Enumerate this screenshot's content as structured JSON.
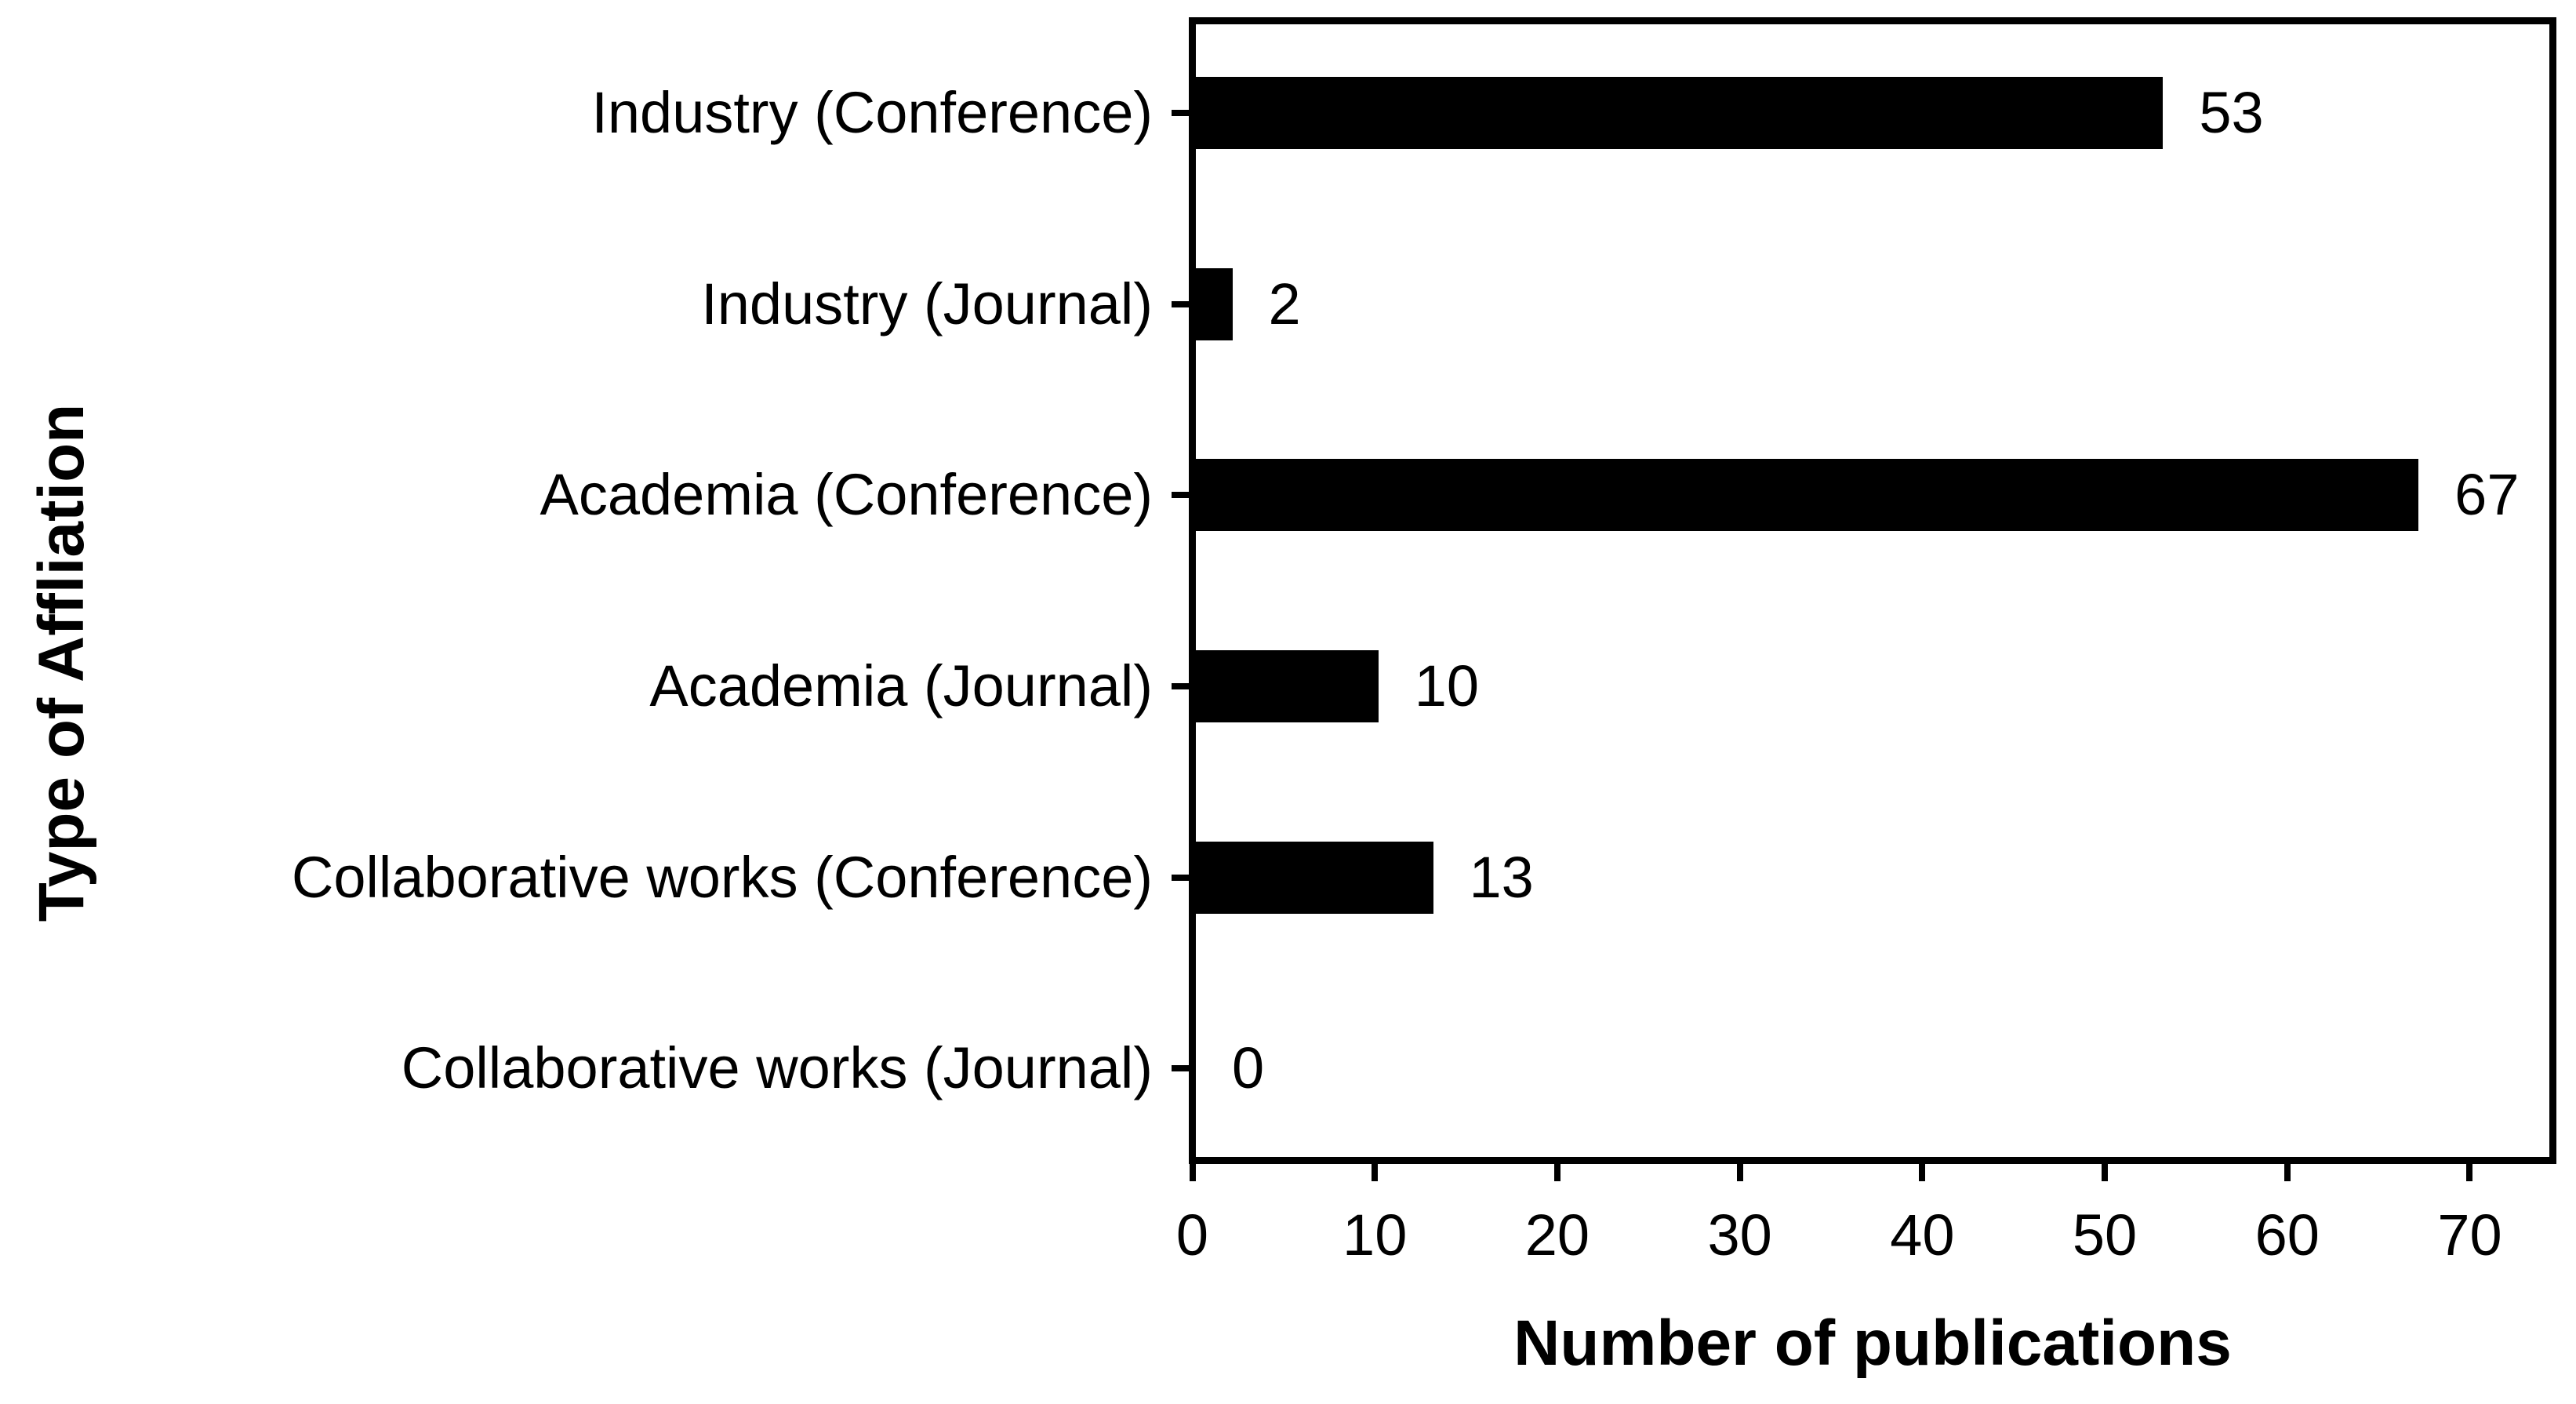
{
  "figure": {
    "background_color": "#ffffff",
    "bar_color": "#000000",
    "axis_color": "#000000",
    "text_color": "#000000"
  },
  "chart_data": {
    "type": "bar",
    "orientation": "horizontal",
    "title": "",
    "xlabel": "Number of publications",
    "ylabel": "Type of Affliation",
    "categories": [
      "Industry (Conference)",
      "Industry (Journal)",
      "Academia (Conference)",
      "Academia (Journal)",
      "Collaborative works (Conference)",
      "Collaborative works (Journal)"
    ],
    "values": [
      53,
      2,
      67,
      10,
      13,
      0
    ],
    "bar_value_labels": [
      "53",
      "2",
      "67",
      "10",
      "13",
      "0"
    ],
    "xticks": [
      0,
      10,
      20,
      30,
      40,
      50,
      60,
      70
    ],
    "xlim": [
      0,
      75
    ],
    "grid": false,
    "legend": null,
    "frame": "full-box",
    "value_labels_position": "right-of-bar"
  }
}
